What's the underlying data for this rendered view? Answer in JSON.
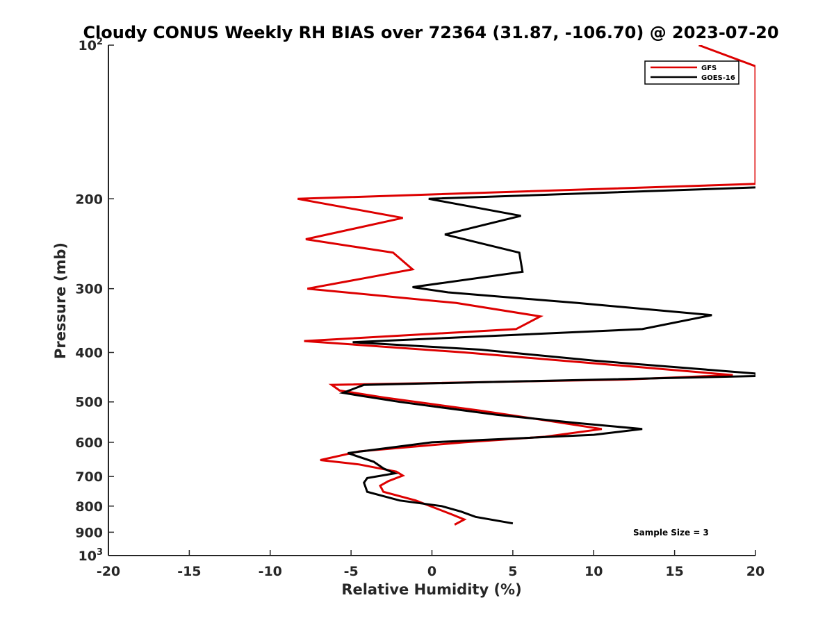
{
  "chart_data": {
    "type": "line",
    "title": "Cloudy CONUS Weekly RH BIAS over 72364 (31.87, -106.70) @ 2023-07-20",
    "xlabel": "Relative Humidity (%)",
    "ylabel": "Pressure (mb)",
    "xlim": [
      -20,
      20
    ],
    "ylim": [
      100,
      1000
    ],
    "y_scale": "log",
    "y_reversed": true,
    "x_ticks": [
      "-20",
      "-15",
      "-10",
      "-5",
      "0",
      "5",
      "10",
      "15",
      "20"
    ],
    "y_ticks": [
      {
        "value": 100,
        "base": "10",
        "exp": "2"
      },
      {
        "value": 200,
        "label": "200"
      },
      {
        "value": 300,
        "label": "300"
      },
      {
        "value": 400,
        "label": "400"
      },
      {
        "value": 500,
        "label": "500"
      },
      {
        "value": 600,
        "label": "600"
      },
      {
        "value": 700,
        "label": "700"
      },
      {
        "value": 800,
        "label": "800"
      },
      {
        "value": 900,
        "label": "900"
      },
      {
        "value": 1000,
        "base": "10",
        "exp": "3"
      }
    ],
    "grid": false,
    "legend_position": "top-right",
    "annotation": "Sample Size = 3",
    "series": [
      {
        "name": "GFS",
        "color": "#dd0000",
        "points": [
          [
            16.5,
            100
          ],
          [
            20.0,
            110
          ],
          [
            20.0,
            187
          ],
          [
            -8.3,
            200
          ],
          [
            -1.8,
            218
          ],
          [
            -7.8,
            240
          ],
          [
            -2.4,
            255
          ],
          [
            -1.2,
            275
          ],
          [
            -7.7,
            300
          ],
          [
            1.5,
            320
          ],
          [
            6.7,
            340
          ],
          [
            5.2,
            360
          ],
          [
            -7.9,
            380
          ],
          [
            2.0,
            400
          ],
          [
            10.0,
            420
          ],
          [
            18.6,
            443
          ],
          [
            12.0,
            452
          ],
          [
            -6.2,
            463
          ],
          [
            -5.7,
            475
          ],
          [
            -3.0,
            490
          ],
          [
            0.0,
            505
          ],
          [
            3.0,
            520
          ],
          [
            7.3,
            545
          ],
          [
            10.5,
            565
          ],
          [
            7.0,
            585
          ],
          [
            2.0,
            600
          ],
          [
            -4.5,
            625
          ],
          [
            -6.9,
            650
          ],
          [
            -4.5,
            663
          ],
          [
            -2.2,
            685
          ],
          [
            -1.8,
            697
          ],
          [
            -2.7,
            715
          ],
          [
            -3.2,
            730
          ],
          [
            -3.0,
            750
          ],
          [
            -1.0,
            780
          ],
          [
            1.2,
            830
          ],
          [
            2.0,
            850
          ],
          [
            1.4,
            870
          ]
        ]
      },
      {
        "name": "GOES-16",
        "color": "#000000",
        "points": [
          [
            20.0,
            190
          ],
          [
            -0.2,
            200
          ],
          [
            5.5,
            216
          ],
          [
            0.8,
            235
          ],
          [
            5.4,
            255
          ],
          [
            5.6,
            278
          ],
          [
            -1.2,
            298
          ],
          [
            1.0,
            305
          ],
          [
            9.0,
            320
          ],
          [
            17.3,
            338
          ],
          [
            13.0,
            360
          ],
          [
            -4.9,
            382
          ],
          [
            3.0,
            395
          ],
          [
            10.0,
            415
          ],
          [
            20.0,
            440
          ],
          [
            20.0,
            445
          ],
          [
            -4.2,
            463
          ],
          [
            -5.5,
            480
          ],
          [
            -4.3,
            487
          ],
          [
            -2.0,
            500
          ],
          [
            4.0,
            530
          ],
          [
            9.0,
            550
          ],
          [
            13.0,
            565
          ],
          [
            10.0,
            580
          ],
          [
            0.0,
            600
          ],
          [
            -5.2,
            630
          ],
          [
            -3.6,
            655
          ],
          [
            -3.0,
            675
          ],
          [
            -2.3,
            690
          ],
          [
            -4.0,
            705
          ],
          [
            -4.2,
            720
          ],
          [
            -4.0,
            750
          ],
          [
            -2.0,
            780
          ],
          [
            0.6,
            800
          ],
          [
            1.8,
            820
          ],
          [
            2.7,
            840
          ],
          [
            5.0,
            865
          ]
        ]
      }
    ]
  }
}
